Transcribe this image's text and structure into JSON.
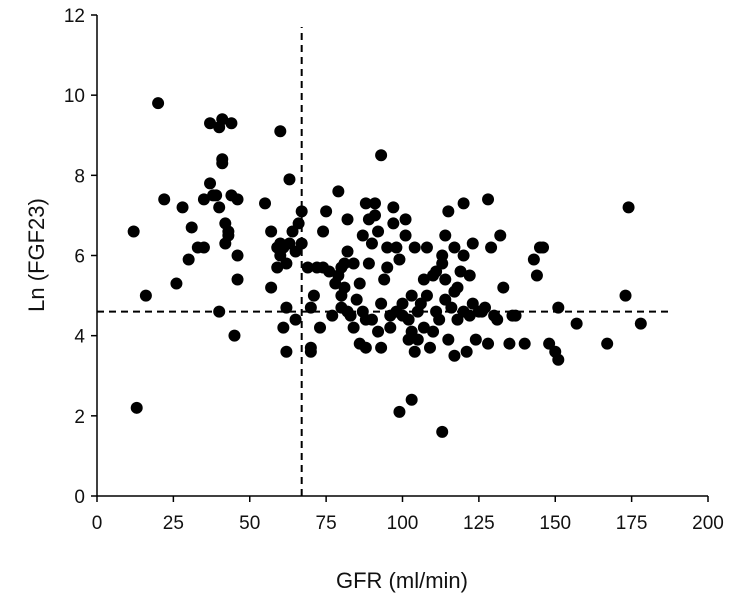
{
  "chart_data": {
    "type": "scatter",
    "title": "",
    "xlabel": "GFR (ml/min)",
    "ylabel": "Ln (FGF23)",
    "xlim": [
      0,
      200
    ],
    "ylim": [
      0,
      12
    ],
    "xticks": [
      "0",
      "25",
      "50",
      "75",
      "100",
      "125",
      "150",
      "175",
      "200"
    ],
    "yticks": [
      "0",
      "2",
      "4",
      "6",
      "8",
      "10",
      "12"
    ],
    "grid": false,
    "legend": "none",
    "reference_lines": [
      {
        "orientation": "vertical",
        "x": 67,
        "y_range": [
          0,
          11.7
        ],
        "style": "dashed"
      },
      {
        "orientation": "horizontal",
        "y": 4.6,
        "x_range": [
          0,
          187
        ],
        "style": "dashed"
      }
    ],
    "marker_color": "#000000",
    "points": [
      [
        12,
        6.6
      ],
      [
        13,
        2.2
      ],
      [
        16,
        5.0
      ],
      [
        20,
        9.8
      ],
      [
        22,
        7.4
      ],
      [
        26,
        5.3
      ],
      [
        28,
        7.2
      ],
      [
        30,
        5.9
      ],
      [
        31,
        6.7
      ],
      [
        33,
        6.2
      ],
      [
        35,
        6.2
      ],
      [
        35,
        7.4
      ],
      [
        37,
        9.3
      ],
      [
        37,
        7.8
      ],
      [
        38,
        7.5
      ],
      [
        39,
        7.5
      ],
      [
        40,
        7.2
      ],
      [
        40,
        4.6
      ],
      [
        40,
        9.2
      ],
      [
        41,
        9.4
      ],
      [
        41,
        8.4
      ],
      [
        41,
        8.3
      ],
      [
        42,
        6.3
      ],
      [
        42,
        6.8
      ],
      [
        43,
        6.6
      ],
      [
        43,
        6.5
      ],
      [
        44,
        9.3
      ],
      [
        44,
        7.5
      ],
      [
        45,
        4.0
      ],
      [
        46,
        7.4
      ],
      [
        46,
        5.4
      ],
      [
        46,
        6.0
      ],
      [
        55,
        7.3
      ],
      [
        57,
        5.2
      ],
      [
        57,
        6.6
      ],
      [
        59,
        6.2
      ],
      [
        59,
        5.7
      ],
      [
        60,
        9.1
      ],
      [
        60,
        6.0
      ],
      [
        60,
        6.3
      ],
      [
        61,
        4.2
      ],
      [
        61,
        6.2
      ],
      [
        62,
        3.6
      ],
      [
        62,
        4.7
      ],
      [
        62,
        5.8
      ],
      [
        63,
        7.9
      ],
      [
        63,
        6.3
      ],
      [
        64,
        6.6
      ],
      [
        65,
        6.1
      ],
      [
        65,
        4.4
      ],
      [
        66,
        6.8
      ],
      [
        67,
        7.1
      ],
      [
        67,
        6.3
      ],
      [
        69,
        5.7
      ],
      [
        70,
        4.7
      ],
      [
        70,
        3.7
      ],
      [
        70,
        3.6
      ],
      [
        71,
        5.0
      ],
      [
        72,
        5.7
      ],
      [
        73,
        4.2
      ],
      [
        74,
        6.6
      ],
      [
        74,
        5.7
      ],
      [
        75,
        7.1
      ],
      [
        76,
        5.6
      ],
      [
        77,
        4.5
      ],
      [
        78,
        5.3
      ],
      [
        79,
        5.5
      ],
      [
        79,
        7.6
      ],
      [
        80,
        5.0
      ],
      [
        80,
        5.7
      ],
      [
        80,
        4.7
      ],
      [
        81,
        5.8
      ],
      [
        81,
        5.2
      ],
      [
        82,
        6.1
      ],
      [
        82,
        6.9
      ],
      [
        82,
        4.6
      ],
      [
        83,
        4.5
      ],
      [
        84,
        5.8
      ],
      [
        84,
        4.2
      ],
      [
        85,
        4.9
      ],
      [
        86,
        5.3
      ],
      [
        86,
        3.8
      ],
      [
        87,
        6.5
      ],
      [
        87,
        4.6
      ],
      [
        88,
        7.3
      ],
      [
        88,
        4.4
      ],
      [
        88,
        3.7
      ],
      [
        89,
        6.9
      ],
      [
        89,
        5.8
      ],
      [
        90,
        4.4
      ],
      [
        90,
        6.3
      ],
      [
        91,
        7.3
      ],
      [
        91,
        7.0
      ],
      [
        92,
        4.1
      ],
      [
        92,
        6.6
      ],
      [
        93,
        8.5
      ],
      [
        93,
        3.7
      ],
      [
        93,
        4.8
      ],
      [
        94,
        5.4
      ],
      [
        95,
        6.2
      ],
      [
        95,
        5.7
      ],
      [
        96,
        4.2
      ],
      [
        96,
        4.5
      ],
      [
        97,
        7.2
      ],
      [
        97,
        6.8
      ],
      [
        98,
        6.2
      ],
      [
        98,
        4.6
      ],
      [
        99,
        5.9
      ],
      [
        99,
        2.1
      ],
      [
        100,
        4.5
      ],
      [
        100,
        4.8
      ],
      [
        101,
        6.9
      ],
      [
        101,
        6.5
      ],
      [
        102,
        3.9
      ],
      [
        102,
        4.4
      ],
      [
        103,
        5.0
      ],
      [
        103,
        4.1
      ],
      [
        103,
        2.4
      ],
      [
        104,
        3.6
      ],
      [
        104,
        6.2
      ],
      [
        105,
        4.6
      ],
      [
        105,
        3.9
      ],
      [
        106,
        4.8
      ],
      [
        107,
        5.4
      ],
      [
        107,
        4.2
      ],
      [
        108,
        6.2
      ],
      [
        108,
        5.0
      ],
      [
        109,
        3.7
      ],
      [
        110,
        5.5
      ],
      [
        110,
        4.1
      ],
      [
        111,
        4.6
      ],
      [
        111,
        5.6
      ],
      [
        112,
        4.4
      ],
      [
        113,
        1.6
      ],
      [
        113,
        6.0
      ],
      [
        113,
        5.8
      ],
      [
        114,
        6.5
      ],
      [
        114,
        5.4
      ],
      [
        114,
        4.9
      ],
      [
        115,
        7.1
      ],
      [
        115,
        3.9
      ],
      [
        116,
        4.7
      ],
      [
        117,
        5.1
      ],
      [
        117,
        3.5
      ],
      [
        117,
        6.2
      ],
      [
        118,
        5.2
      ],
      [
        118,
        4.4
      ],
      [
        119,
        5.6
      ],
      [
        120,
        7.3
      ],
      [
        120,
        4.6
      ],
      [
        120,
        6.0
      ],
      [
        121,
        3.6
      ],
      [
        122,
        4.5
      ],
      [
        122,
        5.5
      ],
      [
        123,
        4.8
      ],
      [
        123,
        6.3
      ],
      [
        124,
        3.9
      ],
      [
        125,
        4.6
      ],
      [
        126,
        4.6
      ],
      [
        127,
        4.7
      ],
      [
        128,
        7.4
      ],
      [
        128,
        3.8
      ],
      [
        129,
        6.2
      ],
      [
        130,
        4.5
      ],
      [
        131,
        4.4
      ],
      [
        132,
        6.5
      ],
      [
        133,
        5.2
      ],
      [
        135,
        3.8
      ],
      [
        136,
        4.5
      ],
      [
        137,
        4.5
      ],
      [
        140,
        3.8
      ],
      [
        143,
        5.9
      ],
      [
        144,
        5.5
      ],
      [
        145,
        6.2
      ],
      [
        146,
        6.2
      ],
      [
        148,
        3.8
      ],
      [
        150,
        3.6
      ],
      [
        151,
        3.4
      ],
      [
        151,
        4.7
      ],
      [
        157,
        4.3
      ],
      [
        167,
        3.8
      ],
      [
        173,
        5.0
      ],
      [
        174,
        7.2
      ],
      [
        178,
        4.3
      ]
    ]
  }
}
